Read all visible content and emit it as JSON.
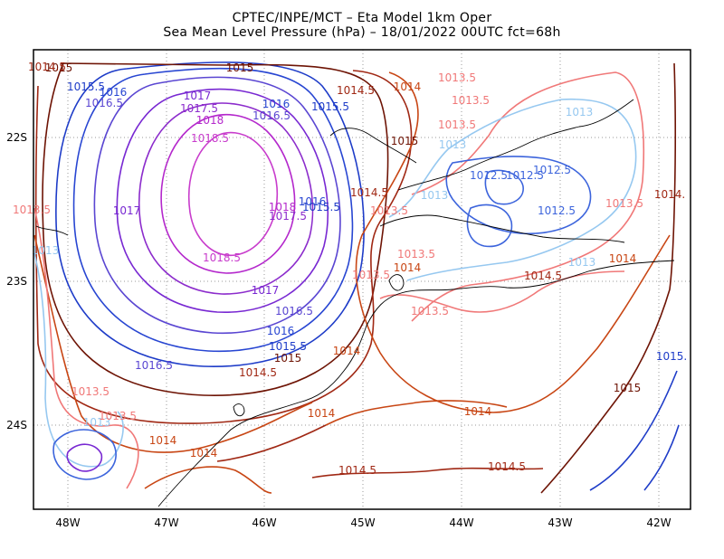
{
  "title": {
    "line1": "CPTEC/INPE/MCT –  Eta Model 1km Oper",
    "line2": "Sea Mean Level Pressure (hPa) – 18/01/2022 00UTC fct=68h"
  },
  "axes": {
    "x_ticks": [
      "48W",
      "47W",
      "46W",
      "45W",
      "44W",
      "43W",
      "42W"
    ],
    "y_ticks": [
      "22S",
      "23S",
      "24S"
    ]
  },
  "colors": {
    "c1012_5": "#3c64dc",
    "c1013": "#96c8f0",
    "c1013_5": "#f07878",
    "c1014": "#c84614",
    "c1014_5": "#a02814",
    "c1015": "#6e1405",
    "c1015_5": "#1e3cc8",
    "c1016": "#2846d2",
    "c1016_5": "#5a46d2",
    "c1017": "#7828d2",
    "c1017_5": "#8c2ccc",
    "c1018": "#b428cc",
    "c1018_5": "#c83ccc",
    "coast": "#000000",
    "frame": "#000000"
  },
  "labels": [
    {
      "t": "1015",
      "c": "c1015"
    },
    {
      "t": "1015.5",
      "c": "c1015_5"
    },
    {
      "t": "1016",
      "c": "c1016"
    },
    {
      "t": "1016.5",
      "c": "c1016_5"
    },
    {
      "t": "1017",
      "c": "c1017"
    },
    {
      "t": "1017.5",
      "c": "c1017_5"
    },
    {
      "t": "1018",
      "c": "c1018"
    },
    {
      "t": "1018.5",
      "c": "c1018_5"
    },
    {
      "t": "1015",
      "c": "c1015"
    },
    {
      "t": "1016",
      "c": "c1016"
    },
    {
      "t": "1016.5",
      "c": "c1016_5"
    },
    {
      "t": "1015.5",
      "c": "c1015_5"
    },
    {
      "t": "1014.5",
      "c": "c1014_5"
    },
    {
      "t": "1014",
      "c": "c1014"
    },
    {
      "t": "1013.5",
      "c": "c1013_5"
    },
    {
      "t": "1013.5",
      "c": "c1013_5"
    },
    {
      "t": "1013.5",
      "c": "c1013_5"
    },
    {
      "t": "1013",
      "c": "c1013"
    },
    {
      "t": "1013",
      "c": "c1013"
    },
    {
      "t": "1015",
      "c": "c1015"
    },
    {
      "t": "1012.5",
      "c": "c1012_5"
    },
    {
      "t": "1012.5",
      "c": "c1012_5"
    },
    {
      "t": "1012.5",
      "c": "c1012_5"
    },
    {
      "t": "1013",
      "c": "c1013"
    },
    {
      "t": "1014.5",
      "c": "c1014_5"
    },
    {
      "t": "1013.5",
      "c": "c1013_5"
    },
    {
      "t": "1014.5",
      "c": "c1014_5"
    },
    {
      "t": "1013.5",
      "c": "c1013_5"
    },
    {
      "t": "1017",
      "c": "c1017"
    },
    {
      "t": "1018",
      "c": "c1018"
    },
    {
      "t": "1017.5",
      "c": "c1017_5"
    },
    {
      "t": "1015.5",
      "c": "c1015_5"
    },
    {
      "t": "1016",
      "c": "c1016"
    },
    {
      "t": "1018.5",
      "c": "c1018_5"
    },
    {
      "t": "1017",
      "c": "c1017"
    },
    {
      "t": "1016.5",
      "c": "c1016_5"
    },
    {
      "t": "1016",
      "c": "c1016"
    },
    {
      "t": "1015.5",
      "c": "c1015_5"
    },
    {
      "t": "1015",
      "c": "c1015"
    },
    {
      "t": "1014.5",
      "c": "c1014_5"
    },
    {
      "t": "1016.5",
      "c": "c1016_5"
    },
    {
      "t": "1014",
      "c": "c1014"
    },
    {
      "t": "1013.5",
      "c": "c1013_5"
    },
    {
      "t": "1013",
      "c": "c1013"
    },
    {
      "t": "1013",
      "c": "c1013"
    },
    {
      "t": "1013.5",
      "c": "c1013_5"
    },
    {
      "t": "1013.5",
      "c": "c1013_5"
    },
    {
      "t": "1013.5",
      "c": "c1013_5"
    },
    {
      "t": "1014",
      "c": "c1014"
    },
    {
      "t": "1013",
      "c": "c1013"
    },
    {
      "t": "1014.5",
      "c": "c1014_5"
    },
    {
      "t": "1014",
      "c": "c1014"
    },
    {
      "t": "1013.5",
      "c": "c1013_5"
    },
    {
      "t": "1012.5",
      "c": "c1012_5"
    },
    {
      "t": "1014",
      "c": "c1014"
    },
    {
      "t": "1014",
      "c": "c1014"
    },
    {
      "t": "1014",
      "c": "c1014"
    },
    {
      "t": "1014.5",
      "c": "c1014_5"
    },
    {
      "t": "1014.5",
      "c": "c1014_5"
    },
    {
      "t": "1015",
      "c": "c1015"
    },
    {
      "t": "1015.",
      "c": "c1015_5"
    },
    {
      "t": "1014",
      "c": "c1014"
    },
    {
      "t": "1014.",
      "c": "c1014_5"
    },
    {
      "t": "1013.5",
      "c": "c1013_5"
    }
  ]
}
